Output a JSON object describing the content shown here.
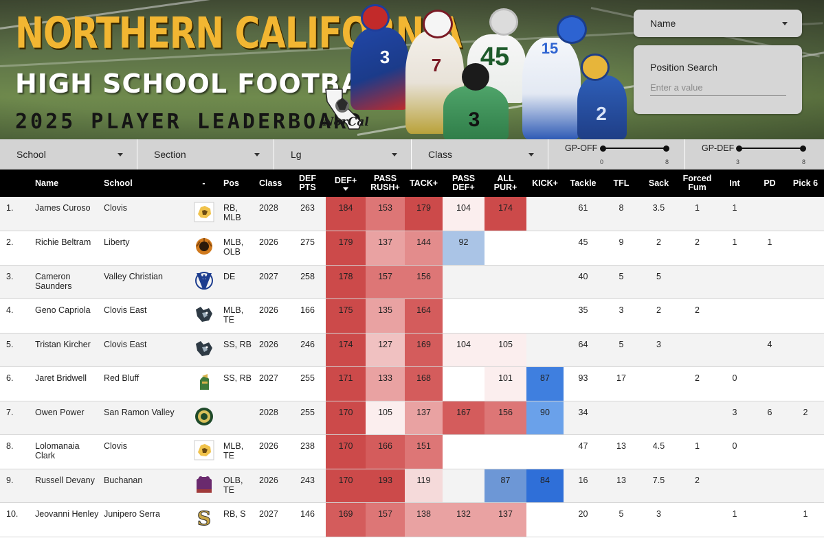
{
  "banner": {
    "title_line1": "NORTHERN CALIFORNIA",
    "title_line2": "HIGH SCHOOL FOOTBALL",
    "title_line3": "2025 PLAYER LEADERBOARD",
    "logo_text": "NorCal",
    "jersey_numbers": [
      "3",
      "7",
      "45",
      "3",
      "15",
      "2"
    ]
  },
  "controls": {
    "name_dropdown": "Name",
    "position_search_label": "Position Search",
    "position_search_placeholder": "Enter a value"
  },
  "filters": {
    "school": "School",
    "section": "Section",
    "league": "Lg",
    "class": "Class",
    "gp_off": {
      "label": "GP-OFF",
      "min": "0",
      "max": "8",
      "low": 0,
      "high": 8,
      "range": [
        0,
        8
      ]
    },
    "gp_def": {
      "label": "GP-DEF",
      "min": "3",
      "max": "8",
      "low": 3,
      "high": 8,
      "range": [
        3,
        8
      ]
    }
  },
  "colors": {
    "heat_red_strong": "#cd4b4b",
    "heat_red_mid": "#e07a7a",
    "heat_red_light": "#f0b9b9",
    "heat_blue_strong": "#3d7ee0",
    "heat_blue_light": "#a8c4e6",
    "header_bg": "#000000",
    "filter_bg": "#d3d3d3"
  },
  "table": {
    "headers": [
      "Name",
      "School",
      "-",
      "Pos",
      "Class",
      "DEF PTS",
      "DEF+",
      "PASS RUSH+",
      "TACK+",
      "PASS DEF+",
      "ALL PUR+",
      "KICK+",
      "Tackle",
      "TFL",
      "Sack",
      "Forced Fum",
      "Int",
      "PD",
      "Pick 6"
    ],
    "rows": [
      {
        "rank": "1.",
        "name": "James Curoso",
        "school": "Clovis",
        "logo": "clovis-cougar-logo",
        "pos": "RB, MLB",
        "class": "2028",
        "def_pts": "263",
        "def_plus": "184",
        "pass_rush": "153",
        "tack": "179",
        "pass_def": "104",
        "all_pur": "174",
        "kick": "",
        "tackle": "61",
        "tfl": "8",
        "sack": "3.5",
        "ff": "1",
        "int": "1",
        "pd": "",
        "pick6": ""
      },
      {
        "rank": "2.",
        "name": "Richie Beltram",
        "school": "Liberty",
        "logo": "liberty-lion-logo",
        "pos": "MLB, OLB",
        "class": "2026",
        "def_pts": "275",
        "def_plus": "179",
        "pass_rush": "137",
        "tack": "144",
        "pass_def": "92",
        "all_pur": "",
        "kick": "",
        "tackle": "45",
        "tfl": "9",
        "sack": "2",
        "ff": "2",
        "int": "1",
        "pd": "1",
        "pick6": ""
      },
      {
        "rank": "3.",
        "name": "Cameron Saunders",
        "school": "Valley Christian",
        "logo": "valley-christian-logo",
        "pos": "DE",
        "class": "2027",
        "def_pts": "258",
        "def_plus": "178",
        "pass_rush": "157",
        "tack": "156",
        "pass_def": "",
        "all_pur": "",
        "kick": "",
        "tackle": "40",
        "tfl": "5",
        "sack": "5",
        "ff": "",
        "int": "",
        "pd": "",
        "pick6": ""
      },
      {
        "rank": "4.",
        "name": "Geno Capriola",
        "school": "Clovis East",
        "logo": "clovis-east-timberwolf-logo",
        "pos": "MLB, TE",
        "class": "2026",
        "def_pts": "166",
        "def_plus": "175",
        "pass_rush": "135",
        "tack": "164",
        "pass_def": "",
        "all_pur": "",
        "kick": "",
        "tackle": "35",
        "tfl": "3",
        "sack": "2",
        "ff": "2",
        "int": "",
        "pd": "",
        "pick6": ""
      },
      {
        "rank": "5.",
        "name": "Tristan Kircher",
        "school": "Clovis East",
        "logo": "clovis-east-timberwolf-logo",
        "pos": "SS, RB",
        "class": "2026",
        "def_pts": "246",
        "def_plus": "174",
        "pass_rush": "127",
        "tack": "169",
        "pass_def": "104",
        "all_pur": "105",
        "kick": "",
        "tackle": "64",
        "tfl": "5",
        "sack": "3",
        "ff": "",
        "int": "",
        "pd": "4",
        "pick6": ""
      },
      {
        "rank": "6.",
        "name": "Jaret Bridwell",
        "school": "Red Bluff",
        "logo": "red-bluff-spartan-logo",
        "pos": "SS, RB",
        "class": "2027",
        "def_pts": "255",
        "def_plus": "171",
        "pass_rush": "133",
        "tack": "168",
        "pass_def": "",
        "all_pur": "101",
        "kick": "87",
        "tackle": "93",
        "tfl": "17",
        "sack": "",
        "ff": "2",
        "int": "0",
        "pd": "",
        "pick6": ""
      },
      {
        "rank": "7.",
        "name": "Owen Power",
        "school": "San Ramon Valley",
        "logo": "san-ramon-valley-logo",
        "pos": "",
        "class": "2028",
        "def_pts": "255",
        "def_plus": "170",
        "pass_rush": "105",
        "tack": "137",
        "pass_def": "167",
        "all_pur": "156",
        "kick": "90",
        "tackle": "34",
        "tfl": "",
        "sack": "",
        "ff": "",
        "int": "3",
        "pd": "6",
        "pick6": "2"
      },
      {
        "rank": "8.",
        "name": "Lolomanaia Clark",
        "school": "Clovis",
        "logo": "clovis-cougar-logo",
        "pos": "MLB, TE",
        "class": "2026",
        "def_pts": "238",
        "def_plus": "170",
        "pass_rush": "166",
        "tack": "151",
        "pass_def": "",
        "all_pur": "",
        "kick": "",
        "tackle": "47",
        "tfl": "13",
        "sack": "4.5",
        "ff": "1",
        "int": "0",
        "pd": "",
        "pick6": ""
      },
      {
        "rank": "9.",
        "name": "Russell Devany",
        "school": "Buchanan",
        "logo": "buchanan-bears-logo",
        "pos": "OLB, TE",
        "class": "2026",
        "def_pts": "243",
        "def_plus": "170",
        "pass_rush": "193",
        "tack": "119",
        "pass_def": "",
        "all_pur": "87",
        "kick": "84",
        "tackle": "16",
        "tfl": "13",
        "sack": "7.5",
        "ff": "2",
        "int": "",
        "pd": "",
        "pick6": ""
      },
      {
        "rank": "10.",
        "name": "Jeovanni Henley",
        "school": "Junipero Serra",
        "logo": "junipero-serra-logo",
        "pos": "RB, S",
        "class": "2027",
        "def_pts": "146",
        "def_plus": "169",
        "pass_rush": "157",
        "tack": "138",
        "pass_def": "132",
        "all_pur": "137",
        "kick": "",
        "tackle": "20",
        "tfl": "5",
        "sack": "3",
        "ff": "",
        "int": "1",
        "pd": "",
        "pick6": "1"
      }
    ]
  }
}
